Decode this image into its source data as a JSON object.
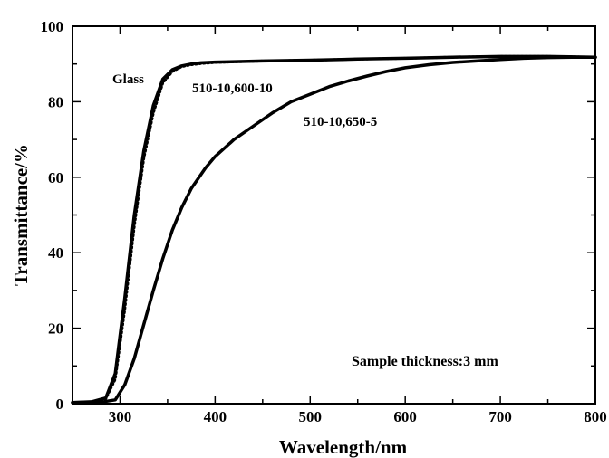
{
  "chart_data": {
    "type": "line",
    "title": "",
    "xlabel": "Wavelength/nm",
    "ylabel": "Transmittance/%",
    "xlim": [
      250,
      800
    ],
    "ylim": [
      0,
      100
    ],
    "x_ticks": [
      300,
      400,
      500,
      600,
      700,
      800
    ],
    "y_ticks": [
      0,
      20,
      40,
      60,
      80,
      100
    ],
    "grid": false,
    "annotation": "Sample thickness:3 mm",
    "series": [
      {
        "name": "Glass",
        "style": "solid",
        "x": [
          250,
          270,
          285,
          295,
          305,
          315,
          325,
          335,
          345,
          355,
          365,
          375,
          385,
          400,
          450,
          500,
          550,
          600,
          650,
          700,
          750,
          800
        ],
        "y": [
          0.3,
          0.5,
          1.5,
          8,
          28,
          50,
          67,
          79,
          86,
          88.5,
          89.5,
          90,
          90.3,
          90.5,
          90.8,
          91,
          91.3,
          91.5,
          91.8,
          92,
          92,
          91.8
        ]
      },
      {
        "name": "510-10,600-10",
        "style": "dotted",
        "x": [
          250,
          270,
          285,
          295,
          305,
          315,
          325,
          335,
          345,
          355,
          365,
          375,
          385,
          400,
          450,
          500,
          550,
          600,
          650,
          700,
          750,
          800
        ],
        "y": [
          0.3,
          0.5,
          1.3,
          6.5,
          25,
          47,
          65,
          77,
          85,
          88,
          89.3,
          89.8,
          90.1,
          90.4,
          90.8,
          91,
          91.3,
          91.5,
          91.8,
          92,
          92,
          91.8
        ]
      },
      {
        "name": "510-10,650-5",
        "style": "solid",
        "x": [
          250,
          280,
          295,
          305,
          315,
          325,
          335,
          345,
          355,
          365,
          375,
          390,
          400,
          420,
          440,
          460,
          480,
          500,
          520,
          540,
          560,
          580,
          600,
          625,
          650,
          675,
          700,
          725,
          750,
          775,
          800
        ],
        "y": [
          0.3,
          0.4,
          1,
          5,
          12,
          21,
          30,
          38.5,
          46,
          52,
          57,
          62.5,
          65.5,
          70,
          73.5,
          77,
          80,
          82,
          84,
          85.5,
          86.8,
          88,
          89,
          89.8,
          90.4,
          90.8,
          91.2,
          91.5,
          91.7,
          91.8,
          91.8
        ]
      }
    ]
  }
}
